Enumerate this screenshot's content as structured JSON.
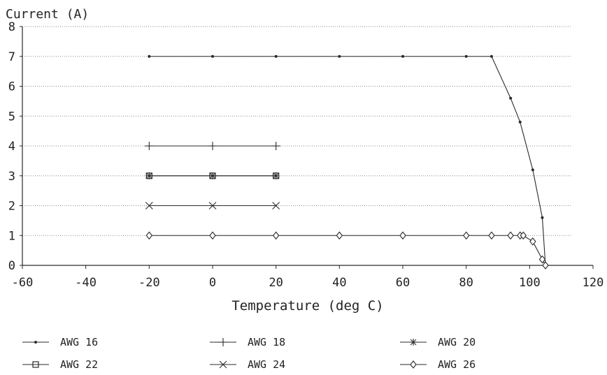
{
  "chart_data": {
    "type": "line",
    "title": "",
    "ylabel": "Current (A)",
    "xlabel": "Temperature (deg C)",
    "xlim": [
      -60,
      120
    ],
    "ylim": [
      0,
      8
    ],
    "xticks": [
      -60,
      -40,
      -20,
      0,
      20,
      40,
      60,
      80,
      100,
      120
    ],
    "yticks": [
      0,
      1,
      2,
      3,
      4,
      5,
      6,
      7,
      8
    ],
    "grid": "horizontal dotted",
    "legend_position": "bottom",
    "series": [
      {
        "name": "AWG 16",
        "marker": "dot",
        "x": [
          -20,
          0,
          20,
          40,
          60,
          80,
          88,
          94,
          97,
          101,
          104,
          105
        ],
        "y": [
          7,
          7,
          7,
          7,
          7,
          7,
          7,
          5.6,
          4.8,
          3.2,
          1.6,
          0
        ]
      },
      {
        "name": "AWG 18",
        "marker": "plus",
        "x": [
          -20,
          0,
          20
        ],
        "y": [
          4,
          4,
          4
        ]
      },
      {
        "name": "AWG 20",
        "marker": "asterisk",
        "x": [
          -20,
          0,
          20
        ],
        "y": [
          3,
          3,
          3
        ]
      },
      {
        "name": "AWG 22",
        "marker": "square",
        "x": [
          -20,
          0,
          20
        ],
        "y": [
          3,
          3,
          3
        ]
      },
      {
        "name": "AWG 24",
        "marker": "x",
        "x": [
          -20,
          0,
          20
        ],
        "y": [
          2,
          2,
          2
        ]
      },
      {
        "name": "AWG 26",
        "marker": "diamond",
        "x": [
          -20,
          0,
          20,
          40,
          60,
          80,
          88,
          94,
          97,
          98,
          101,
          104,
          105
        ],
        "y": [
          1,
          1,
          1,
          1,
          1,
          1,
          1,
          1,
          1,
          1,
          0.8,
          0.2,
          0
        ]
      }
    ]
  },
  "colors": {
    "line": "#2a2a2a",
    "grid": "#8a8a8a",
    "background": "#ffffff"
  }
}
